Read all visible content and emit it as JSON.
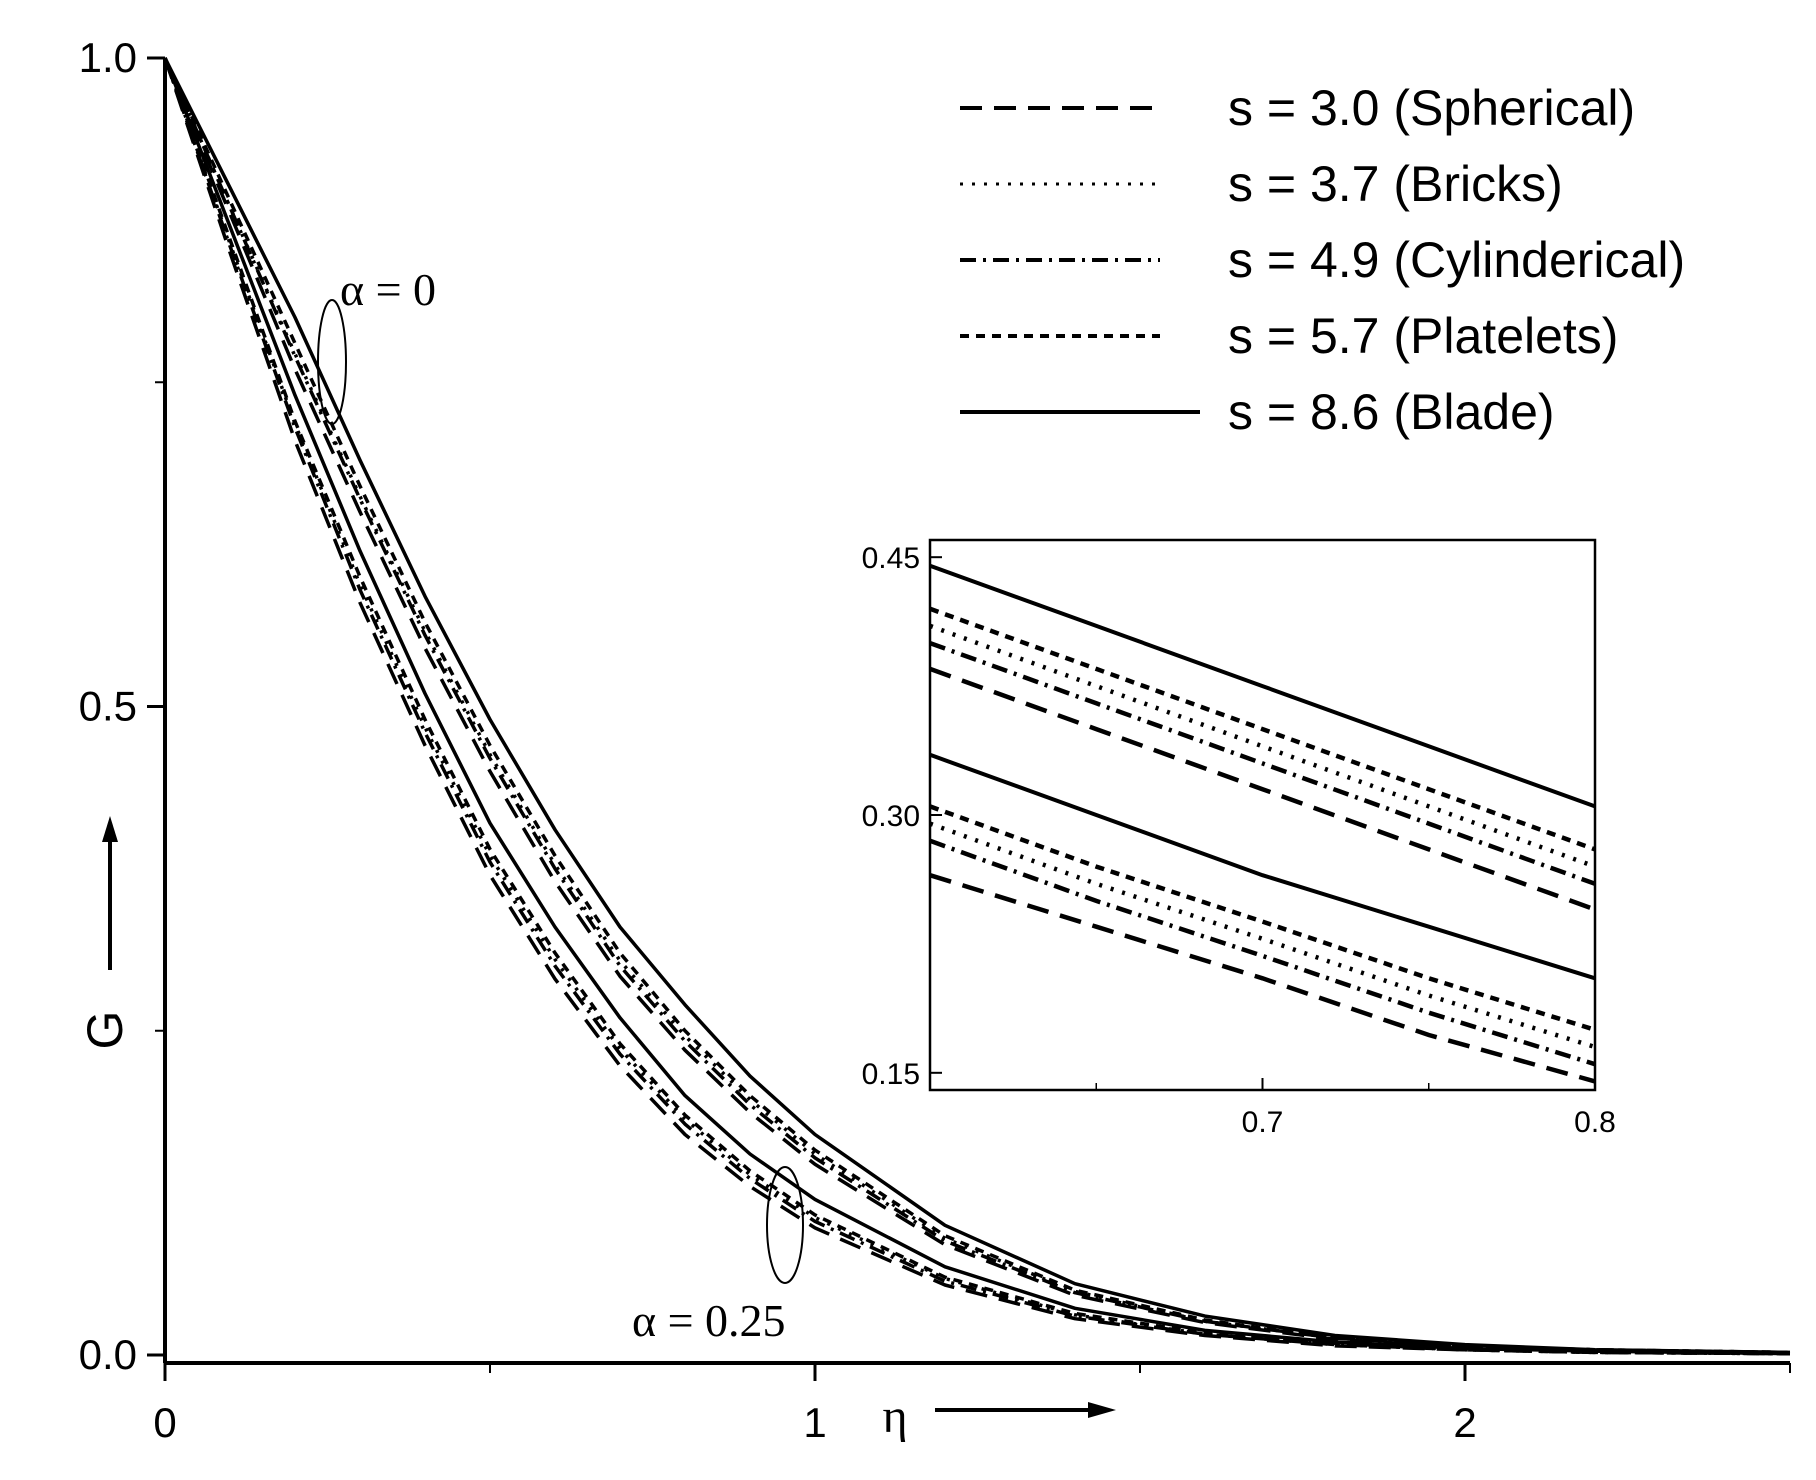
{
  "chart_data": [
    {
      "type": "line",
      "title": "",
      "xlabel": "η",
      "ylabel": "G",
      "xlim": [
        0,
        2.5
      ],
      "ylim": [
        0,
        1.0
      ],
      "xticks": [
        0,
        1,
        2
      ],
      "xtick_labels": [
        "0",
        "1",
        "2"
      ],
      "yticks": [
        0.0,
        0.5,
        1.0
      ],
      "ytick_labels": [
        "0.0",
        "0.5",
        "1.0"
      ],
      "grid": false,
      "legend_position": "top-right",
      "legend": [
        {
          "label": "s = 3.0 (Spherical)",
          "style": "dashed"
        },
        {
          "label": "s = 3.7 (Bricks)",
          "style": "dotted"
        },
        {
          "label": "s = 4.9 (Cylinderical)",
          "style": "dash-dot"
        },
        {
          "label": "s = 5.7 (Platelets)",
          "style": "short-dash"
        },
        {
          "label": "s = 8.6 (Blade)",
          "style": "solid"
        }
      ],
      "annotations": [
        "α = 0",
        "α = 0.25"
      ],
      "x": [
        0,
        0.1,
        0.2,
        0.3,
        0.4,
        0.5,
        0.6,
        0.7,
        0.8,
        0.9,
        1.0,
        1.2,
        1.4,
        1.6,
        1.8,
        2.0,
        2.2,
        2.5
      ],
      "series": [
        {
          "name": "s = 8.6 (Blade)",
          "group": "α = 0",
          "values": [
            1.0,
            0.9,
            0.8,
            0.69,
            0.585,
            0.49,
            0.405,
            0.33,
            0.27,
            0.215,
            0.17,
            0.1,
            0.055,
            0.03,
            0.015,
            0.008,
            0.004,
            0.002
          ]
        },
        {
          "name": "s = 5.7 (Platelets)",
          "group": "α = 0",
          "values": [
            1.0,
            0.89,
            0.78,
            0.67,
            0.565,
            0.47,
            0.385,
            0.31,
            0.25,
            0.2,
            0.158,
            0.092,
            0.05,
            0.027,
            0.013,
            0.007,
            0.004,
            0.002
          ]
        },
        {
          "name": "s = 4.9 (Cylinderical)",
          "group": "α = 0",
          "values": [
            1.0,
            0.885,
            0.77,
            0.66,
            0.555,
            0.46,
            0.375,
            0.3,
            0.242,
            0.193,
            0.152,
            0.088,
            0.048,
            0.026,
            0.013,
            0.007,
            0.004,
            0.002
          ]
        },
        {
          "name": "s = 3.7 (Bricks)",
          "group": "α = 0",
          "values": [
            1.0,
            0.885,
            0.772,
            0.662,
            0.558,
            0.463,
            0.378,
            0.304,
            0.246,
            0.197,
            0.155,
            0.09,
            0.049,
            0.026,
            0.013,
            0.007,
            0.004,
            0.002
          ]
        },
        {
          "name": "s = 3.0 (Spherical)",
          "group": "α = 0",
          "values": [
            1.0,
            0.88,
            0.76,
            0.65,
            0.545,
            0.45,
            0.365,
            0.292,
            0.235,
            0.187,
            0.147,
            0.085,
            0.046,
            0.025,
            0.012,
            0.006,
            0.003,
            0.002
          ]
        },
        {
          "name": "s = 8.6 (Blade)",
          "group": "α = 0.25",
          "values": [
            1.0,
            0.87,
            0.74,
            0.62,
            0.51,
            0.41,
            0.33,
            0.26,
            0.2,
            0.155,
            0.12,
            0.068,
            0.036,
            0.019,
            0.01,
            0.005,
            0.003,
            0.001
          ]
        },
        {
          "name": "s = 5.7 (Platelets)",
          "group": "α = 0.25",
          "values": [
            1.0,
            0.86,
            0.72,
            0.6,
            0.49,
            0.39,
            0.31,
            0.24,
            0.185,
            0.142,
            0.108,
            0.06,
            0.032,
            0.017,
            0.009,
            0.004,
            0.002,
            0.001
          ]
        },
        {
          "name": "s = 4.9 (Cylinderical)",
          "group": "α = 0.25",
          "values": [
            1.0,
            0.855,
            0.715,
            0.59,
            0.48,
            0.38,
            0.3,
            0.232,
            0.178,
            0.136,
            0.103,
            0.057,
            0.03,
            0.016,
            0.008,
            0.004,
            0.002,
            0.001
          ]
        },
        {
          "name": "s = 3.7 (Bricks)",
          "group": "α = 0.25",
          "values": [
            1.0,
            0.857,
            0.718,
            0.594,
            0.484,
            0.385,
            0.305,
            0.236,
            0.182,
            0.139,
            0.106,
            0.059,
            0.031,
            0.016,
            0.008,
            0.004,
            0.002,
            0.001
          ]
        },
        {
          "name": "s = 3.0 (Spherical)",
          "group": "α = 0.25",
          "values": [
            1.0,
            0.85,
            0.705,
            0.58,
            0.47,
            0.37,
            0.29,
            0.223,
            0.17,
            0.13,
            0.098,
            0.054,
            0.028,
            0.015,
            0.007,
            0.004,
            0.002,
            0.001
          ]
        }
      ]
    },
    {
      "type": "line",
      "title": "",
      "xlabel": "",
      "ylabel": "",
      "xlim": [
        0.6,
        0.8
      ],
      "ylim": [
        0.14,
        0.46
      ],
      "xticks": [
        0.7,
        0.8
      ],
      "xtick_labels": [
        "0.7",
        "0.8"
      ],
      "yticks": [
        0.15,
        0.3,
        0.45
      ],
      "ytick_labels": [
        "0.15",
        "0.30",
        "0.45"
      ],
      "grid": false,
      "x": [
        0.6,
        0.65,
        0.7,
        0.75,
        0.8
      ],
      "series": [
        {
          "name": "s = 8.6 (Blade)",
          "group": "α = 0",
          "values": [
            0.445,
            0.41,
            0.375,
            0.34,
            0.305
          ]
        },
        {
          "name": "s = 5.7 (Platelets)",
          "group": "α = 0",
          "values": [
            0.42,
            0.385,
            0.35,
            0.315,
            0.28
          ]
        },
        {
          "name": "s = 3.7 (Bricks)",
          "group": "α = 0",
          "values": [
            0.41,
            0.375,
            0.34,
            0.305,
            0.27
          ]
        },
        {
          "name": "s = 4.9 (Cylinderical)",
          "group": "α = 0",
          "values": [
            0.4,
            0.365,
            0.33,
            0.295,
            0.26
          ]
        },
        {
          "name": "s = 3.0 (Spherical)",
          "group": "α = 0",
          "values": [
            0.385,
            0.35,
            0.315,
            0.28,
            0.245
          ]
        },
        {
          "name": "s = 8.6 (Blade)",
          "group": "α = 0.25",
          "values": [
            0.335,
            0.3,
            0.265,
            0.235,
            0.205
          ]
        },
        {
          "name": "s = 5.7 (Platelets)",
          "group": "α = 0.25",
          "values": [
            0.305,
            0.27,
            0.238,
            0.205,
            0.175
          ]
        },
        {
          "name": "s = 3.7 (Bricks)",
          "group": "α = 0.25",
          "values": [
            0.295,
            0.26,
            0.228,
            0.195,
            0.165
          ]
        },
        {
          "name": "s = 4.9 (Cylinderical)",
          "group": "α = 0.25",
          "values": [
            0.285,
            0.25,
            0.218,
            0.185,
            0.155
          ]
        },
        {
          "name": "s = 3.0 (Spherical)",
          "group": "α = 0.25",
          "values": [
            0.265,
            0.235,
            0.205,
            0.172,
            0.145
          ]
        }
      ]
    }
  ]
}
